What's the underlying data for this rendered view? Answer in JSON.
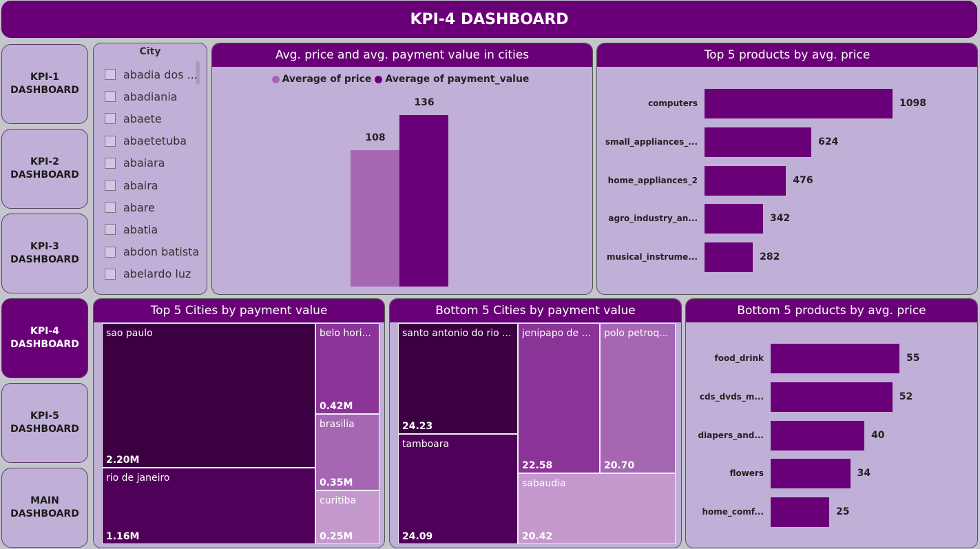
{
  "header": {
    "title": "KPI-4 DASHBOARD"
  },
  "nav": [
    {
      "label": "KPI-1\nDASHBOARD",
      "active": false
    },
    {
      "label": "KPI-2\nDASHBOARD",
      "active": false
    },
    {
      "label": "KPI-3\nDASHBOARD",
      "active": false
    },
    {
      "label": "KPI-4\nDASHBOARD",
      "active": true
    },
    {
      "label": "KPI-5\nDASHBOARD",
      "active": false
    },
    {
      "label": "MAIN\nDASHBOARD",
      "active": false
    }
  ],
  "slicer": {
    "title": "City",
    "items": [
      "abadia dos ...",
      "abadiania",
      "abaete",
      "abaetetuba",
      "abaiara",
      "abaira",
      "abare",
      "abatia",
      "abdon batista",
      "abelardo luz"
    ]
  },
  "colors": {
    "accent": "#6a0077",
    "panel": "#c0b0d8",
    "price": "#a566b2"
  },
  "charts": {
    "avg_cities": {
      "title": "Avg. price and avg. payment value in cities",
      "legend": [
        "Average of price",
        "Average of payment_value"
      ],
      "labels": [
        "108",
        "136"
      ]
    },
    "top_products": {
      "title": "Top 5 products by avg. price",
      "categories": [
        "computers",
        "small_appliances_...",
        "home_appliances_2",
        "agro_industry_an...",
        "musical_instrume..."
      ],
      "labels": [
        "1098",
        "624",
        "476",
        "342",
        "282"
      ]
    },
    "bottom_products": {
      "title": "Bottom 5 products by avg. price",
      "categories": [
        "food_drink",
        "cds_dvds_m...",
        "diapers_and...",
        "flowers",
        "home_comf..."
      ],
      "labels": [
        "55",
        "52",
        "40",
        "34",
        "25"
      ]
    },
    "top_cities": {
      "title": "Top 5 Cities by payment value",
      "cells": [
        {
          "name": "sao paulo",
          "label": "2.20M"
        },
        {
          "name": "rio de janeiro",
          "label": "1.16M"
        },
        {
          "name": "belo hori...",
          "label": "0.42M"
        },
        {
          "name": "brasilia",
          "label": "0.35M"
        },
        {
          "name": "curitiba",
          "label": "0.25M"
        }
      ]
    },
    "bottom_cities": {
      "title": "Bottom 5 Cities by payment value",
      "cells": [
        {
          "name": "santo antonio do rio ...",
          "label": "24.23"
        },
        {
          "name": "tamboara",
          "label": "24.09"
        },
        {
          "name": "jenipapo de ...",
          "label": "22.58"
        },
        {
          "name": "polo petroq...",
          "label": "20.70"
        },
        {
          "name": "sabaudia",
          "label": "20.42"
        }
      ]
    }
  },
  "chart_data": [
    {
      "type": "bar",
      "title": "Avg. price and avg. payment value in cities",
      "series": [
        {
          "name": "Average of price",
          "values": [
            108
          ],
          "color": "#a566b2"
        },
        {
          "name": "Average of payment_value",
          "values": [
            136
          ],
          "color": "#6a0077"
        }
      ],
      "categories": [
        ""
      ],
      "legend": "top-center",
      "grid": false
    },
    {
      "type": "bar",
      "orientation": "horizontal",
      "title": "Top 5 products by avg. price",
      "categories": [
        "computers",
        "small_appliances_...",
        "home_appliances_2",
        "agro_industry_an...",
        "musical_instrume..."
      ],
      "values": [
        1098,
        624,
        476,
        342,
        282
      ],
      "color": "#6a0077"
    },
    {
      "type": "bar",
      "orientation": "horizontal",
      "title": "Bottom 5 products by avg. price",
      "categories": [
        "food_drink",
        "cds_dvds_m...",
        "diapers_and...",
        "flowers",
        "home_comf..."
      ],
      "values": [
        55,
        52,
        40,
        34,
        25
      ],
      "color": "#6a0077"
    },
    {
      "type": "treemap",
      "title": "Top 5 Cities by payment value",
      "categories": [
        "sao paulo",
        "rio de janeiro",
        "belo hori...",
        "brasilia",
        "curitiba"
      ],
      "values": [
        2.2,
        1.16,
        0.42,
        0.35,
        0.25
      ],
      "unit": "M"
    },
    {
      "type": "treemap",
      "title": "Bottom 5 Cities by payment value",
      "categories": [
        "santo antonio do rio ...",
        "tamboara",
        "jenipapo de ...",
        "polo petroq...",
        "sabaudia"
      ],
      "values": [
        24.23,
        24.09,
        22.58,
        20.7,
        20.42
      ]
    }
  ]
}
